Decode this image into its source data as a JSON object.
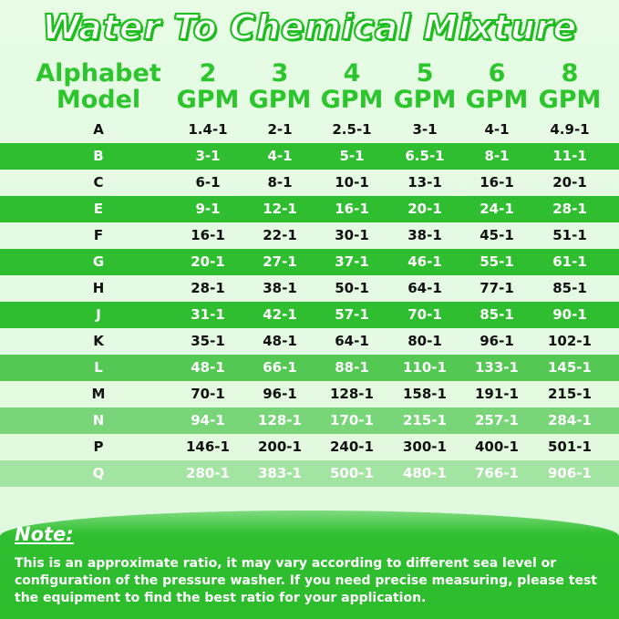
{
  "title": "Water To Chemical Mixture",
  "header": {
    "model_line1": "Alphabet",
    "model_line2": "Model",
    "columns": [
      {
        "num": "2",
        "unit": "GPM"
      },
      {
        "num": "3",
        "unit": "GPM"
      },
      {
        "num": "4",
        "unit": "GPM"
      },
      {
        "num": "5",
        "unit": "GPM"
      },
      {
        "num": "6",
        "unit": "GPM"
      },
      {
        "num": "8",
        "unit": "GPM"
      }
    ]
  },
  "rows": [
    {
      "model": "A",
      "values": [
        "1.4-1",
        "2-1",
        "2.5-1",
        "3-1",
        "4-1",
        "4.9-1"
      ]
    },
    {
      "model": "B",
      "values": [
        "3-1",
        "4-1",
        "5-1",
        "6.5-1",
        "8-1",
        "11-1"
      ]
    },
    {
      "model": "C",
      "values": [
        "6-1",
        "8-1",
        "10-1",
        "13-1",
        "16-1",
        "20-1"
      ]
    },
    {
      "model": "E",
      "values": [
        "9-1",
        "12-1",
        "16-1",
        "20-1",
        "24-1",
        "28-1"
      ]
    },
    {
      "model": "F",
      "values": [
        "16-1",
        "22-1",
        "30-1",
        "38-1",
        "45-1",
        "51-1"
      ]
    },
    {
      "model": "G",
      "values": [
        "20-1",
        "27-1",
        "37-1",
        "46-1",
        "55-1",
        "61-1"
      ]
    },
    {
      "model": "H",
      "values": [
        "28-1",
        "38-1",
        "50-1",
        "64-1",
        "77-1",
        "85-1"
      ]
    },
    {
      "model": "J",
      "values": [
        "31-1",
        "42-1",
        "57-1",
        "70-1",
        "85-1",
        "90-1"
      ]
    },
    {
      "model": "K",
      "values": [
        "35-1",
        "48-1",
        "64-1",
        "80-1",
        "96-1",
        "102-1"
      ]
    },
    {
      "model": "L",
      "values": [
        "48-1",
        "66-1",
        "88-1",
        "110-1",
        "133-1",
        "145-1"
      ]
    },
    {
      "model": "M",
      "values": [
        "70-1",
        "96-1",
        "128-1",
        "158-1",
        "191-1",
        "215-1"
      ]
    },
    {
      "model": "N",
      "values": [
        "94-1",
        "128-1",
        "170-1",
        "215-1",
        "257-1",
        "284-1"
      ]
    },
    {
      "model": "P",
      "values": [
        "146-1",
        "200-1",
        "240-1",
        "300-1",
        "400-1",
        "501-1"
      ]
    },
    {
      "model": "Q",
      "values": [
        "280-1",
        "383-1",
        "500-1",
        "480-1",
        "766-1",
        "906-1"
      ]
    }
  ],
  "note": {
    "title": "Note:",
    "text": "This is an approximate ratio, it may vary according to different sea level or configuration of the pressure washer. If you need precise measuring, please test the equipment to find the best ratio for your application."
  },
  "colors": {
    "brand_green": "#2cc52c",
    "stripe_green": "#2fbe2f",
    "background": "#e4fae2",
    "text_dark": "#111111",
    "text_light": "#ffffff"
  }
}
